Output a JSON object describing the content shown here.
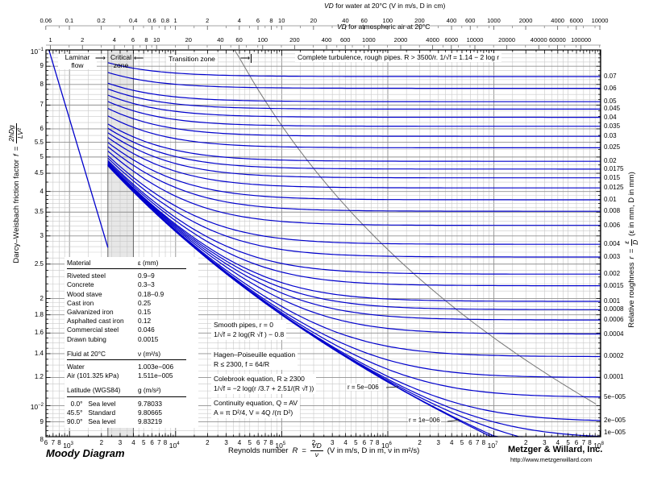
{
  "title": "Moody Diagram",
  "credits": {
    "company": "Metzger & Willard, Inc.",
    "url": "http://www.metzgerwillard.com"
  },
  "top_scales": {
    "water": {
      "title_vd": "VD",
      "title_rest": " for water at 20°C (V in m/s, D in cm)",
      "unit_per_Re": 0.0001003,
      "labels": [
        "0.06",
        "0.1",
        "0.2",
        "0.4",
        "0.6",
        "0.8",
        "1",
        "2",
        "4",
        "6",
        "8",
        "10",
        "20",
        "40",
        "60",
        "100",
        "200",
        "400",
        "600",
        "1000",
        "2000",
        "4000",
        "6000",
        "10000"
      ],
      "values": [
        0.06,
        0.1,
        0.2,
        0.4,
        0.6,
        0.8,
        1,
        2,
        4,
        6,
        8,
        10,
        20,
        40,
        60,
        100,
        200,
        400,
        600,
        1000,
        2000,
        4000,
        6000,
        10000
      ],
      "minor": [
        0.08,
        0.3,
        0.5,
        0.7,
        0.9,
        1.5,
        3,
        5,
        7,
        9,
        15,
        30,
        50,
        70,
        90,
        150,
        300,
        500,
        700,
        900,
        1500,
        3000,
        5000,
        7000,
        9000
      ]
    },
    "air": {
      "title_vd": "VD",
      "title_rest": " for atmospheric air at 20°C",
      "unit_per_Re": 0.001511,
      "labels": [
        "1",
        "2",
        "4",
        "6",
        "8",
        "10",
        "20",
        "40",
        "60",
        "100",
        "200",
        "400",
        "600",
        "1000",
        "2000",
        "4000",
        "6000",
        "10000",
        "20000",
        "40000",
        "60000",
        "100000"
      ],
      "values": [
        1,
        2,
        4,
        6,
        8,
        10,
        20,
        40,
        60,
        100,
        200,
        400,
        600,
        1000,
        2000,
        4000,
        6000,
        10000,
        20000,
        40000,
        60000,
        100000
      ],
      "minor": [
        1.5,
        3,
        5,
        7,
        9,
        15,
        30,
        50,
        70,
        90,
        150,
        300,
        500,
        700,
        900,
        1500,
        3000,
        5000,
        7000,
        9000,
        15000,
        30000,
        50000,
        70000,
        90000,
        150000
      ]
    }
  },
  "y_axis_label": {
    "prefix": "Darcy–Weisbach friction factor",
    "var": "f",
    "eq": "=",
    "num": "2hDg",
    "den": "LV²"
  },
  "right_axis_label": {
    "prefix": "Relative roughness",
    "var": "r",
    "eq": "=",
    "num": "ε",
    "den": "D",
    "suffix": "(ε in mm, D in mm)"
  },
  "x_axis_label": {
    "prefix": "Reynolds number",
    "var": "R",
    "eq": "=",
    "num": "VD",
    "den": "ν",
    "suffix": "(V in m/s, D in m, ν in m²/s)"
  },
  "zones": {
    "laminar_1": "Laminar",
    "laminar_2": "flow",
    "critical_1": "Critical",
    "critical_2": "zone",
    "transition": "Transition zone",
    "complete": "Complete turbulence, rough pipes. R > 3500/r.  1/√f = 1.14 − 2 log r",
    "arrow_right": "⟶",
    "arrow_left": "⟵"
  },
  "equations": {
    "smooth_1": "Smooth pipes, r = 0",
    "smooth_2": "1/√f = 2 log(R √f ) − 0.8",
    "hagen_1": "Hagen–Poiseuille equation",
    "hagen_2": "R ≤ 2300,  f = 64/R",
    "colebrook_1": "Colebrook equation, R ≥ 2300",
    "colebrook_2": "1/√f = −2 log(r /3.7 + 2.51/(R √f ))",
    "continuity_1": "Continuity equation, Q = AV",
    "continuity_2": "A = π D²/4,  V = 4Q /(π D²)"
  },
  "table": {
    "sections": [
      {
        "header": [
          "Material",
          "ε (mm)"
        ],
        "rows": [
          [
            "Riveted steel",
            "0.9–9"
          ],
          [
            "Concrete",
            "0.3–3"
          ],
          [
            "Wood stave",
            "0.18–0.9"
          ],
          [
            "Cast iron",
            "0.25"
          ],
          [
            "Galvanized iron",
            "0.15"
          ],
          [
            "Asphalted cast iron",
            "0.12"
          ],
          [
            "Commercial steel",
            "0.046"
          ],
          [
            "Drawn tubing",
            "0.0015"
          ]
        ]
      },
      {
        "header": [
          "Fluid at 20°C",
          "ν (m²/s)"
        ],
        "rows": [
          [
            "Water",
            "1.003e−006"
          ],
          [
            "Air (101.325 kPa)",
            "1.511e−005"
          ]
        ]
      },
      {
        "header": [
          "Latitude (WGS84)",
          "g (m/s²)"
        ],
        "rows": [
          [
            "  0.0°   Sea level",
            "9.78033"
          ],
          [
            "45.5°   Standard",
            "9.80665"
          ],
          [
            "90.0°   Sea level",
            "9.83219"
          ]
        ]
      }
    ]
  },
  "chart_data": {
    "type": "line",
    "title": "Moody Diagram",
    "x_scale": "log",
    "y_scale": "log",
    "x_range": [
      600,
      101450000
    ],
    "y_range": [
      0.00818,
      0.1
    ],
    "grid": true,
    "x_decade_exponents": [
      3,
      4,
      5,
      6,
      7,
      8
    ],
    "x_minor_labels": [
      2,
      3,
      4,
      5,
      6,
      7,
      8
    ],
    "x_leading_labels": [
      600,
      700,
      800
    ],
    "y_ticks": [
      {
        "f": 0.1,
        "exp": "-1"
      },
      {
        "f": 0.09,
        "label": "9"
      },
      {
        "f": 0.08,
        "label": "8"
      },
      {
        "f": 0.07,
        "label": "7"
      },
      {
        "f": 0.06,
        "label": "6"
      },
      {
        "f": 0.055,
        "label": "5.5"
      },
      {
        "f": 0.05,
        "label": "5"
      },
      {
        "f": 0.045,
        "label": "4.5"
      },
      {
        "f": 0.04,
        "label": "4"
      },
      {
        "f": 0.035,
        "label": "3.5"
      },
      {
        "f": 0.03,
        "label": "3"
      },
      {
        "f": 0.025,
        "label": "2.5"
      },
      {
        "f": 0.02,
        "label": "2"
      },
      {
        "f": 0.018,
        "label": "1.8"
      },
      {
        "f": 0.016,
        "label": "1.6"
      },
      {
        "f": 0.014,
        "label": "1.4"
      },
      {
        "f": 0.012,
        "label": "1.2"
      },
      {
        "f": 0.01,
        "exp": "-2"
      },
      {
        "f": 0.009,
        "label": "9"
      },
      {
        "f": 0.008,
        "label": "8"
      }
    ],
    "roughness_curves": [
      0.07,
      0.06,
      0.05,
      0.045,
      0.04,
      0.035,
      0.03,
      0.025,
      0.02,
      0.0175,
      0.015,
      0.0125,
      0.01,
      0.008,
      0.006,
      0.004,
      0.003,
      0.002,
      0.0015,
      0.001,
      0.0008,
      0.0006,
      0.0004,
      0.0002,
      0.0001,
      5e-05,
      2e-05,
      1e-05,
      5e-06,
      1e-06
    ],
    "right_labels": [
      "0.07",
      "0.06",
      "0.05",
      "0.045",
      "0.04",
      "0.035",
      "0.03",
      "0.025",
      "0.02",
      "0.0175",
      "0.015",
      "0.0125",
      "0.01",
      "0.008",
      "0.006",
      "0.004",
      "0.003",
      "0.002",
      "0.0015",
      "0.001",
      "0.0008",
      "0.0006",
      "0.0004",
      "0.0002",
      "0.0001",
      "5e−005",
      "2e−005",
      "1e−005"
    ],
    "inline_labels": [
      {
        "text": "r  = 5e−006",
        "x": 430,
        "y": 476,
        "leader": [
          479,
          481,
          494,
          480
        ]
      },
      {
        "text": "r  = 1e−006",
        "x": 506,
        "y": 517,
        "leader": [
          555,
          523,
          570,
          521
        ]
      }
    ],
    "laminar": {
      "equation": "f = 64/R",
      "Re_range": [
        640,
        2300
      ]
    },
    "critical_zone_Re": [
      2300,
      4000
    ],
    "boundary_equation": "R = 3500/r",
    "colebrook_equation": "1/√f = −2 log(r/3.7 + 2.51/(R√f))",
    "smooth_equation": "1/√f = 2 log(R√f) − 0.8",
    "colors": {
      "curve": "#0000cc",
      "boundary": "#777777",
      "grid_minor": "#c9c9c9",
      "grid_major": "#909090",
      "frame": "#000000",
      "band": "#e7e7e7"
    }
  }
}
